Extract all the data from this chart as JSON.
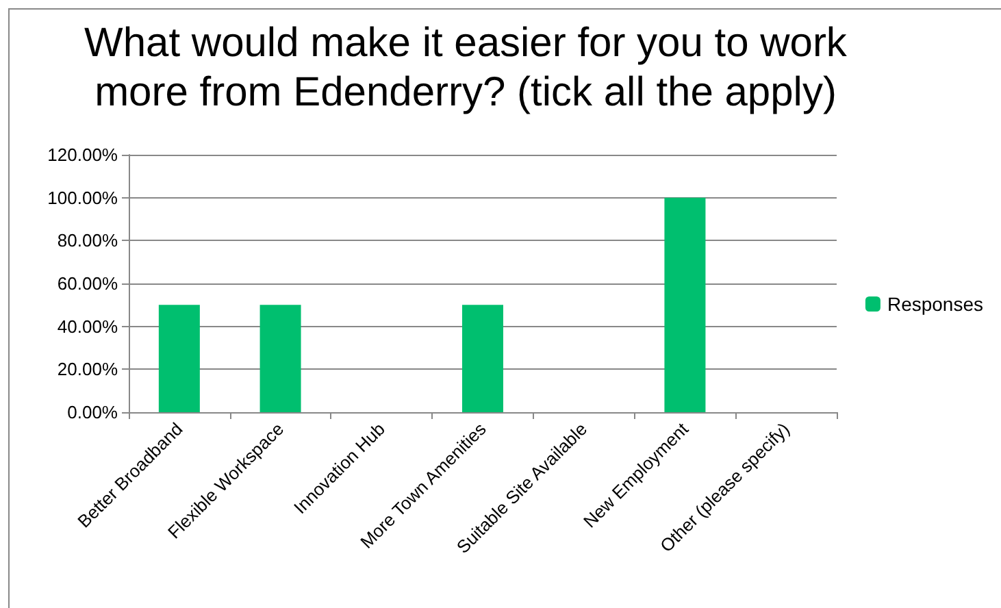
{
  "chart_data": {
    "type": "bar",
    "title": "What would make it easier for you to work more from Edenderry? (tick all the apply)",
    "categories": [
      "Better Broadband",
      "Flexible Workspace",
      "Innovation Hub",
      "More Town Amenities",
      "Suitable Site Available",
      "New Employment",
      "Other (please specify)"
    ],
    "series": [
      {
        "name": "Responses",
        "color": "#00bf6f",
        "values": [
          50,
          50,
          0,
          50,
          0,
          100,
          0
        ]
      }
    ],
    "ylim": [
      0,
      120
    ],
    "yticks": [
      {
        "value": 0,
        "label": "0.00%"
      },
      {
        "value": 20,
        "label": "20.00%"
      },
      {
        "value": 40,
        "label": "40.00%"
      },
      {
        "value": 60,
        "label": "60.00%"
      },
      {
        "value": 80,
        "label": "80.00%"
      },
      {
        "value": 100,
        "label": "100.00%"
      },
      {
        "value": 120,
        "label": "120.00%"
      }
    ],
    "grid": "y",
    "legend": "right"
  }
}
